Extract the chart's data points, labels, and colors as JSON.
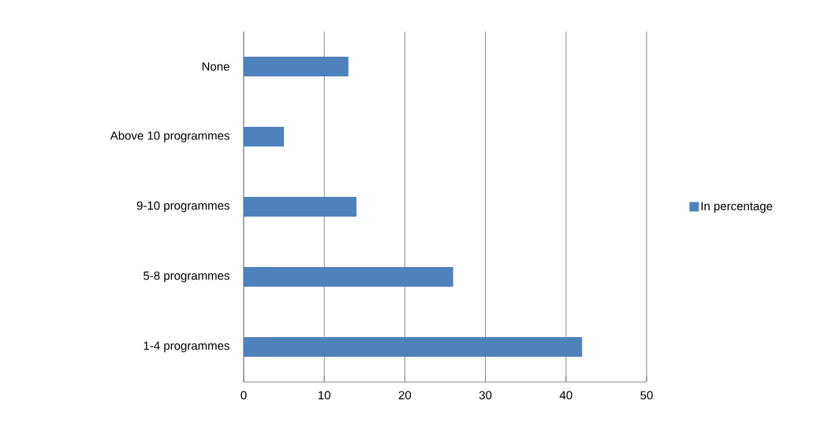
{
  "chart_data": {
    "type": "bar",
    "orientation": "horizontal",
    "categories": [
      "None",
      "Above 10 programmes",
      "9-10 programmes",
      "5-8 programmes",
      "1-4 programmes"
    ],
    "series": [
      {
        "name": "In percentage",
        "color": "#4f81bd",
        "values": [
          13,
          5,
          14,
          26,
          42
        ]
      }
    ],
    "xlim": [
      0,
      50
    ],
    "xticks": [
      0,
      10,
      20,
      30,
      40,
      50
    ],
    "grid": "x",
    "legend": "right"
  }
}
